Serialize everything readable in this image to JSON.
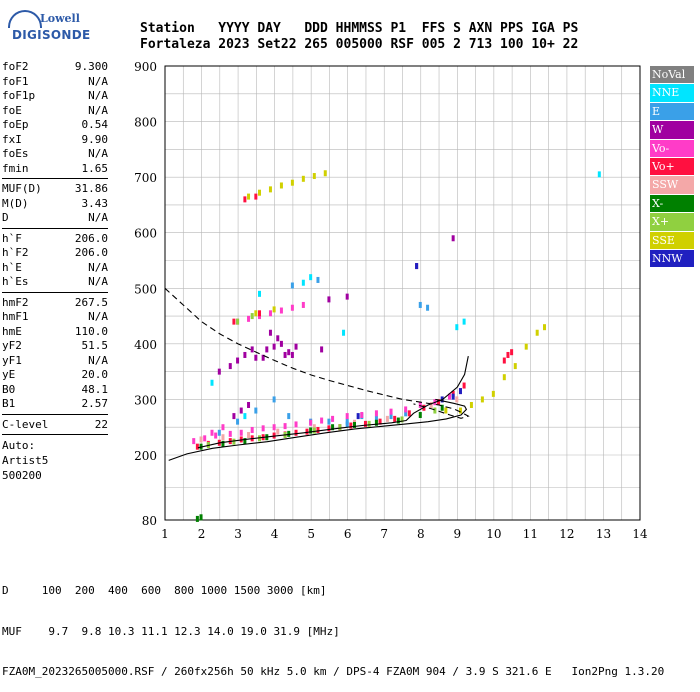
{
  "logo": {
    "line1": "Lowell",
    "line2": "DIGISONDE"
  },
  "header": {
    "labels": "Station   YYYY DAY   DDD HHMMSS P1  FFS S AXN PPS IGA PS",
    "values": "Fortaleza 2023 Set22 265 005000 RSF 005 2 713 100 10+ 22"
  },
  "params": {
    "group1": [
      {
        "name": "foF2",
        "value": "9.300"
      },
      {
        "name": "foF1",
        "value": "N/A"
      },
      {
        "name": "foF1p",
        "value": "N/A"
      },
      {
        "name": "foE",
        "value": "N/A"
      },
      {
        "name": "foEp",
        "value": "0.54"
      },
      {
        "name": "fxI",
        "value": "9.90"
      },
      {
        "name": "foEs",
        "value": "N/A"
      },
      {
        "name": "fmin",
        "value": "1.65"
      }
    ],
    "group2": [
      {
        "name": "MUF(D)",
        "value": "31.86"
      },
      {
        "name": "M(D)",
        "value": "3.43"
      },
      {
        "name": "D",
        "value": "N/A"
      }
    ],
    "group3": [
      {
        "name": "h`F",
        "value": "206.0"
      },
      {
        "name": "h`F2",
        "value": "206.0"
      },
      {
        "name": "h`E",
        "value": "N/A"
      },
      {
        "name": "h`Es",
        "value": "N/A"
      }
    ],
    "group4": [
      {
        "name": "hmF2",
        "value": "267.5"
      },
      {
        "name": "hmF1",
        "value": "N/A"
      },
      {
        "name": "hmE",
        "value": "110.0"
      },
      {
        "name": "yF2",
        "value": "51.5"
      },
      {
        "name": "yF1",
        "value": "N/A"
      },
      {
        "name": "yE",
        "value": "20.0"
      },
      {
        "name": "B0",
        "value": "48.1"
      },
      {
        "name": "B1",
        "value": "2.57"
      }
    ],
    "group5": [
      {
        "name": "C-level",
        "value": "22"
      }
    ],
    "auto": [
      "Auto:",
      "Artist5",
      "500200"
    ]
  },
  "legend": [
    {
      "label": "NoVal",
      "color": "#808080"
    },
    {
      "label": "NNE",
      "color": "#00e5ff"
    },
    {
      "label": "E",
      "color": "#3aa0e8"
    },
    {
      "label": "W",
      "color": "#a000a0"
    },
    {
      "label": "Vo-",
      "color": "#ff3cc8"
    },
    {
      "label": "Vo+",
      "color": "#ff1040"
    },
    {
      "label": "SSW",
      "color": "#f4a8a8"
    },
    {
      "label": "X-",
      "color": "#008000"
    },
    {
      "label": "X+",
      "color": "#90d040"
    },
    {
      "label": "SSE",
      "color": "#d0d000"
    },
    {
      "label": "NNW",
      "color": "#2020c0"
    }
  ],
  "footer": {
    "line1": "D     100  200  400  600  800 1000 1500 3000 [km]",
    "line2": "MUF    9.7  9.8 10.3 11.1 12.3 14.0 19.0 31.9 [MHz]",
    "line3": "FZA0M_2023265005000.RSF / 260fx256h 50 kHz 5.0 km / DPS-4 FZA0M 904 / 3.9 S 321.6 E   Ion2Png 1.3.20"
  },
  "chart_data": {
    "type": "scatter",
    "xlim": [
      1,
      14
    ],
    "ylim": [
      80,
      900
    ],
    "xticks": [
      1,
      2,
      3,
      4,
      5,
      6,
      7,
      8,
      9,
      10,
      11,
      12,
      13,
      14
    ],
    "yticks": [
      80,
      200,
      300,
      400,
      500,
      600,
      700,
      800,
      900
    ],
    "grid": true,
    "series": [
      {
        "name": "NNE",
        "color": "#00e5ff",
        "points": [
          [
            2.3,
            330
          ],
          [
            3.6,
            490
          ],
          [
            4.8,
            510
          ],
          [
            5.0,
            520
          ],
          [
            9.0,
            430
          ],
          [
            9.2,
            440
          ],
          [
            5.9,
            420
          ],
          [
            3.2,
            270
          ],
          [
            12.9,
            705
          ]
        ]
      },
      {
        "name": "E",
        "color": "#3aa0e8",
        "points": [
          [
            3.0,
            260
          ],
          [
            3.5,
            280
          ],
          [
            4.0,
            300
          ],
          [
            4.4,
            270
          ],
          [
            5.0,
            260
          ],
          [
            5.5,
            260
          ],
          [
            6.0,
            255
          ],
          [
            6.4,
            270
          ],
          [
            6.8,
            265
          ],
          [
            7.2,
            270
          ],
          [
            7.6,
            275
          ],
          [
            8.0,
            470
          ],
          [
            8.2,
            465
          ],
          [
            4.5,
            505
          ],
          [
            5.2,
            515
          ],
          [
            2.5,
            240
          ],
          [
            6.0,
            260
          ]
        ]
      },
      {
        "name": "W",
        "color": "#a000a0",
        "points": [
          [
            2.5,
            350
          ],
          [
            2.8,
            360
          ],
          [
            3.0,
            370
          ],
          [
            3.2,
            380
          ],
          [
            3.5,
            375
          ],
          [
            3.8,
            390
          ],
          [
            4.0,
            395
          ],
          [
            4.2,
            400
          ],
          [
            4.4,
            385
          ],
          [
            4.6,
            395
          ],
          [
            3.9,
            420
          ],
          [
            4.1,
            410
          ],
          [
            4.5,
            380
          ],
          [
            5.3,
            390
          ],
          [
            5.5,
            480
          ],
          [
            6.0,
            485
          ],
          [
            4.3,
            380
          ],
          [
            3.4,
            390
          ],
          [
            3.7,
            375
          ],
          [
            2.9,
            270
          ],
          [
            3.1,
            280
          ],
          [
            3.3,
            290
          ],
          [
            7.9,
            540
          ],
          [
            8.9,
            590
          ]
        ]
      },
      {
        "name": "Vo-",
        "color": "#ff3cc8",
        "points": [
          [
            1.8,
            225
          ],
          [
            2.1,
            230
          ],
          [
            2.4,
            235
          ],
          [
            2.8,
            238
          ],
          [
            3.1,
            240
          ],
          [
            3.4,
            245
          ],
          [
            3.7,
            248
          ],
          [
            4.0,
            250
          ],
          [
            4.3,
            252
          ],
          [
            4.6,
            255
          ],
          [
            5.0,
            258
          ],
          [
            5.3,
            262
          ],
          [
            5.6,
            265
          ],
          [
            6.0,
            270
          ],
          [
            6.4,
            272
          ],
          [
            6.8,
            275
          ],
          [
            7.2,
            278
          ],
          [
            7.6,
            282
          ],
          [
            8.0,
            290
          ],
          [
            8.4,
            295
          ],
          [
            8.8,
            305
          ],
          [
            9.1,
            315
          ],
          [
            3.0,
            440
          ],
          [
            3.3,
            445
          ],
          [
            3.6,
            450
          ],
          [
            3.9,
            455
          ],
          [
            4.2,
            460
          ],
          [
            4.5,
            465
          ],
          [
            4.8,
            470
          ],
          [
            2.3,
            240
          ],
          [
            2.6,
            250
          ]
        ]
      },
      {
        "name": "Vo+",
        "color": "#ff1040",
        "points": [
          [
            1.9,
            215
          ],
          [
            2.2,
            220
          ],
          [
            2.5,
            222
          ],
          [
            2.8,
            225
          ],
          [
            3.1,
            228
          ],
          [
            3.4,
            230
          ],
          [
            3.7,
            232
          ],
          [
            4.0,
            235
          ],
          [
            4.3,
            237
          ],
          [
            4.6,
            240
          ],
          [
            4.9,
            242
          ],
          [
            5.2,
            245
          ],
          [
            5.5,
            248
          ],
          [
            5.8,
            250
          ],
          [
            6.1,
            253
          ],
          [
            6.5,
            256
          ],
          [
            6.9,
            260
          ],
          [
            7.3,
            265
          ],
          [
            7.7,
            275
          ],
          [
            8.1,
            285
          ],
          [
            8.5,
            295
          ],
          [
            8.9,
            310
          ],
          [
            9.2,
            325
          ],
          [
            3.2,
            660
          ],
          [
            3.5,
            665
          ],
          [
            2.9,
            440
          ],
          [
            3.6,
            455
          ],
          [
            10.3,
            370
          ],
          [
            10.4,
            380
          ],
          [
            10.5,
            385
          ]
        ]
      },
      {
        "name": "SSW",
        "color": "#f4a8a8",
        "points": [
          [
            2.0,
            228
          ],
          [
            2.6,
            232
          ],
          [
            3.3,
            236
          ],
          [
            4.1,
            242
          ],
          [
            5.1,
            250
          ],
          [
            6.2,
            258
          ],
          [
            7.1,
            265
          ],
          [
            8.3,
            290
          ],
          [
            9.0,
            300
          ]
        ]
      },
      {
        "name": "X-",
        "color": "#008000",
        "points": [
          [
            2.0,
            215
          ],
          [
            2.6,
            220
          ],
          [
            3.2,
            225
          ],
          [
            3.8,
            232
          ],
          [
            4.4,
            238
          ],
          [
            5.0,
            244
          ],
          [
            5.6,
            250
          ],
          [
            6.2,
            254
          ],
          [
            6.8,
            258
          ],
          [
            7.4,
            262
          ],
          [
            8.0,
            272
          ],
          [
            8.6,
            285
          ],
          [
            1.9,
            82
          ],
          [
            2.0,
            85
          ]
        ]
      },
      {
        "name": "X+",
        "color": "#90d040",
        "points": [
          [
            2.2,
            218
          ],
          [
            2.9,
            224
          ],
          [
            3.6,
            230
          ],
          [
            4.3,
            236
          ],
          [
            5.1,
            244
          ],
          [
            5.8,
            250
          ],
          [
            6.6,
            256
          ],
          [
            7.5,
            264
          ],
          [
            8.4,
            280
          ],
          [
            3.0,
            440
          ],
          [
            3.4,
            450
          ]
        ]
      },
      {
        "name": "SSE",
        "color": "#d0d000",
        "points": [
          [
            3.3,
            665
          ],
          [
            3.6,
            672
          ],
          [
            3.9,
            678
          ],
          [
            4.2,
            685
          ],
          [
            4.5,
            690
          ],
          [
            4.8,
            697
          ],
          [
            5.1,
            702
          ],
          [
            5.4,
            707
          ],
          [
            9.4,
            290
          ],
          [
            9.7,
            300
          ],
          [
            10.0,
            310
          ],
          [
            10.3,
            340
          ],
          [
            10.6,
            360
          ],
          [
            10.9,
            395
          ],
          [
            11.2,
            420
          ],
          [
            11.4,
            430
          ],
          [
            9.1,
            280
          ],
          [
            8.7,
            280
          ],
          [
            3.5,
            455
          ],
          [
            4.0,
            462
          ]
        ]
      },
      {
        "name": "NNW",
        "color": "#2020c0",
        "points": [
          [
            8.6,
            300
          ],
          [
            8.9,
            305
          ],
          [
            9.1,
            315
          ],
          [
            7.9,
            540
          ],
          [
            6.3,
            270
          ]
        ]
      }
    ],
    "lines": [
      {
        "name": "profile",
        "color": "#000000",
        "dash": false,
        "points": [
          [
            1.1,
            190
          ],
          [
            1.6,
            202
          ],
          [
            2.3,
            212
          ],
          [
            3.0,
            218
          ],
          [
            3.8,
            224
          ],
          [
            4.6,
            232
          ],
          [
            5.4,
            240
          ],
          [
            6.2,
            247
          ],
          [
            7.0,
            252
          ],
          [
            7.6,
            256
          ],
          [
            8.2,
            260
          ],
          [
            8.7,
            265
          ],
          [
            9.1,
            272
          ],
          [
            9.25,
            282
          ],
          [
            9.2,
            288
          ],
          [
            8.9,
            293
          ],
          [
            8.4,
            300
          ]
        ]
      },
      {
        "name": "trace",
        "color": "#000000",
        "dash": false,
        "points": [
          [
            1.9,
            213
          ],
          [
            2.5,
            222
          ],
          [
            3.2,
            228
          ],
          [
            4.0,
            234
          ],
          [
            4.8,
            240
          ],
          [
            5.6,
            247
          ],
          [
            6.4,
            253
          ],
          [
            7.2,
            258
          ],
          [
            7.6,
            262
          ],
          [
            7.8,
            275
          ],
          [
            8.2,
            290
          ],
          [
            8.6,
            300
          ],
          [
            9.0,
            322
          ],
          [
            9.2,
            345
          ],
          [
            9.3,
            378
          ]
        ]
      },
      {
        "name": "muf",
        "color": "#000000",
        "dash": true,
        "points": [
          [
            1.0,
            500
          ],
          [
            1.5,
            470
          ],
          [
            2.0,
            440
          ],
          [
            2.5,
            418
          ],
          [
            3.0,
            400
          ],
          [
            3.5,
            385
          ],
          [
            4.0,
            370
          ],
          [
            4.5,
            356
          ],
          [
            5.0,
            344
          ],
          [
            5.5,
            334
          ],
          [
            6.0,
            325
          ],
          [
            6.5,
            316
          ],
          [
            7.0,
            308
          ],
          [
            7.5,
            300
          ],
          [
            8.0,
            295
          ],
          [
            8.5,
            290
          ],
          [
            8.9,
            283
          ],
          [
            9.1,
            277
          ],
          [
            9.3,
            270
          ],
          [
            9.1,
            266
          ],
          [
            8.8,
            272
          ],
          [
            8.3,
            283
          ],
          [
            7.8,
            292
          ]
        ]
      }
    ]
  }
}
